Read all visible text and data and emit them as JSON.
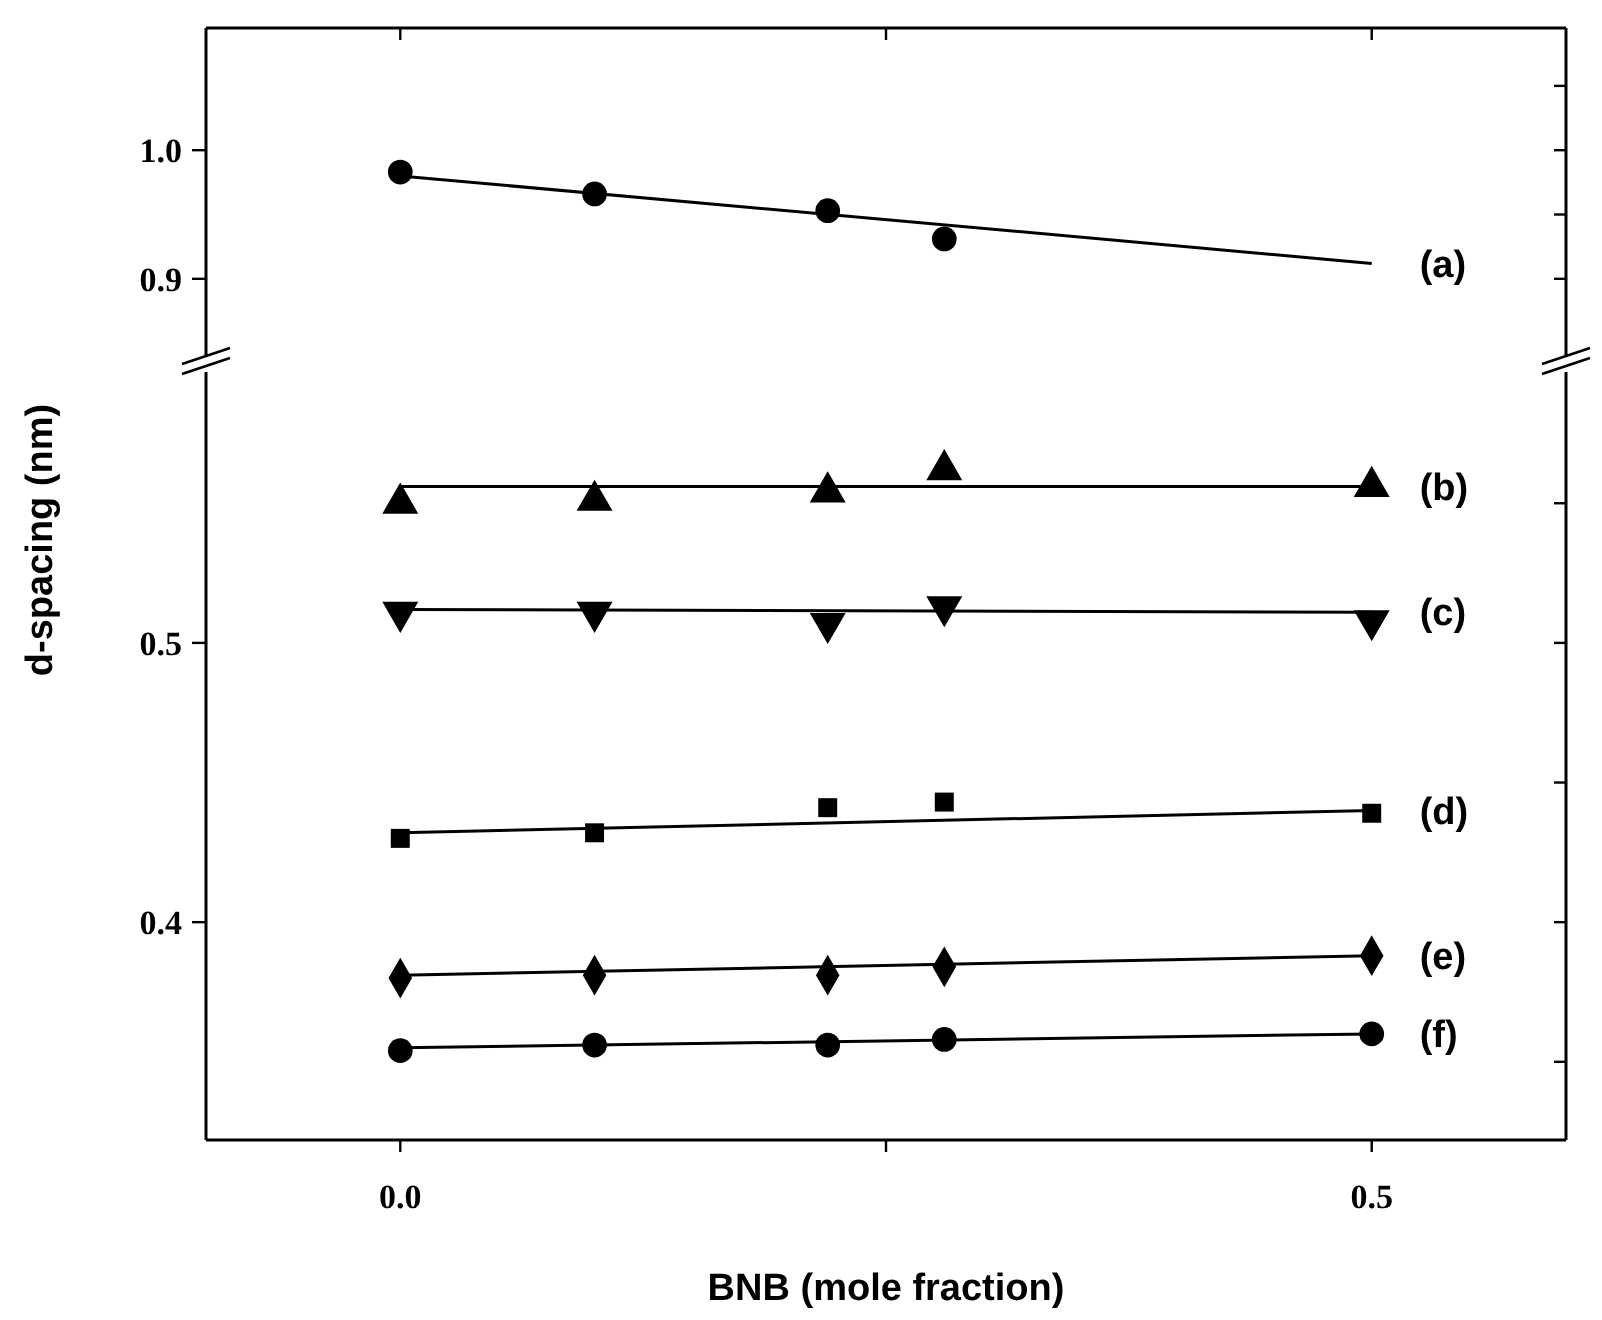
{
  "chart_data": [
    {
      "type": "scatter",
      "xlim": [
        -0.1,
        0.6
      ],
      "xticks": [
        {
          "value": 0,
          "label": null
        },
        {
          "value": 0.25,
          "label": null
        },
        {
          "value": 0.5,
          "label": null
        }
      ],
      "ylim": [
        0.84,
        1.095
      ],
      "yticks": [
        {
          "value": 0.9,
          "label": "0.9"
        },
        {
          "value": 0.95,
          "label": null
        },
        {
          "value": 1.0,
          "label": "1.0"
        },
        {
          "value": 1.05,
          "label": null
        }
      ],
      "tick_labels": "y",
      "grid": false,
      "legend": "right",
      "series": [
        {
          "marker": "circle",
          "color": "#000000",
          "x": [
            0,
            0.1,
            0.22,
            0.28
          ],
          "values": [
            0.983,
            0.966,
            0.953,
            0.931
          ]
        },
        {
          "type": "line",
          "name": "(a)",
          "line_style": "solid",
          "color": "#000000",
          "x": [
            0,
            0.5
          ],
          "values": [
            0.98,
            0.912
          ]
        }
      ]
    },
    {
      "type": "scatter",
      "xlabel": "BNB (mole fraction)",
      "ylabel": "d-spacing (nm)",
      "xlim": [
        -0.1,
        0.6
      ],
      "xticks": [
        {
          "value": 0,
          "label": "0.0"
        },
        {
          "value": 0.25,
          "label": null
        },
        {
          "value": 0.5,
          "label": "0.5"
        }
      ],
      "ylim": [
        0.322,
        0.597
      ],
      "yticks": [
        {
          "value": 0.35,
          "label": null
        },
        {
          "value": 0.4,
          "label": "0.4"
        },
        {
          "value": 0.45,
          "label": null
        },
        {
          "value": 0.5,
          "label": "0.5"
        },
        {
          "value": 0.55,
          "label": null
        }
      ],
      "grid": false,
      "legend": "right",
      "series": [
        {
          "marker": "triangle",
          "color": "#000000",
          "x": [
            0,
            0.1,
            0.22,
            0.28,
            0.5
          ],
          "values": [
            0.55,
            0.551,
            0.554,
            0.562,
            0.556
          ]
        },
        {
          "type": "line",
          "name": "(b)",
          "line_style": "solid",
          "color": "#000000",
          "x": [
            0,
            0.5
          ],
          "values": [
            0.556,
            0.556
          ]
        },
        {
          "marker": "triangle-down",
          "color": "#000000",
          "x": [
            0,
            0.1,
            0.22,
            0.28,
            0.5
          ],
          "values": [
            0.511,
            0.511,
            0.507,
            0.513,
            0.508
          ]
        },
        {
          "type": "line",
          "name": "(c)",
          "line_style": "solid",
          "color": "#000000",
          "x": [
            0,
            0.5
          ],
          "values": [
            0.512,
            0.511
          ]
        },
        {
          "marker": "square",
          "color": "#000000",
          "x": [
            0,
            0.1,
            0.22,
            0.28,
            0.5
          ],
          "values": [
            0.43,
            0.432,
            0.441,
            0.443,
            0.439
          ]
        },
        {
          "type": "line",
          "name": "(d)",
          "line_style": "solid",
          "color": "#000000",
          "x": [
            0,
            0.5
          ],
          "values": [
            0.432,
            0.44
          ]
        },
        {
          "marker": "diamond",
          "color": "#000000",
          "x": [
            0,
            0.1,
            0.22,
            0.28,
            0.5
          ],
          "values": [
            0.38,
            0.381,
            0.381,
            0.384,
            0.388
          ]
        },
        {
          "type": "line",
          "name": "(e)",
          "line_style": "solid",
          "color": "#000000",
          "x": [
            0,
            0.5
          ],
          "values": [
            0.381,
            0.388
          ]
        },
        {
          "marker": "circle",
          "color": "#000000",
          "x": [
            0,
            0.1,
            0.22,
            0.28,
            0.5
          ],
          "values": [
            0.354,
            0.356,
            0.356,
            0.358,
            0.36
          ]
        },
        {
          "type": "line",
          "name": "(f)",
          "line_style": "solid",
          "color": "#000000",
          "x": [
            0,
            0.5
          ],
          "values": [
            0.355,
            0.36
          ]
        }
      ]
    }
  ]
}
